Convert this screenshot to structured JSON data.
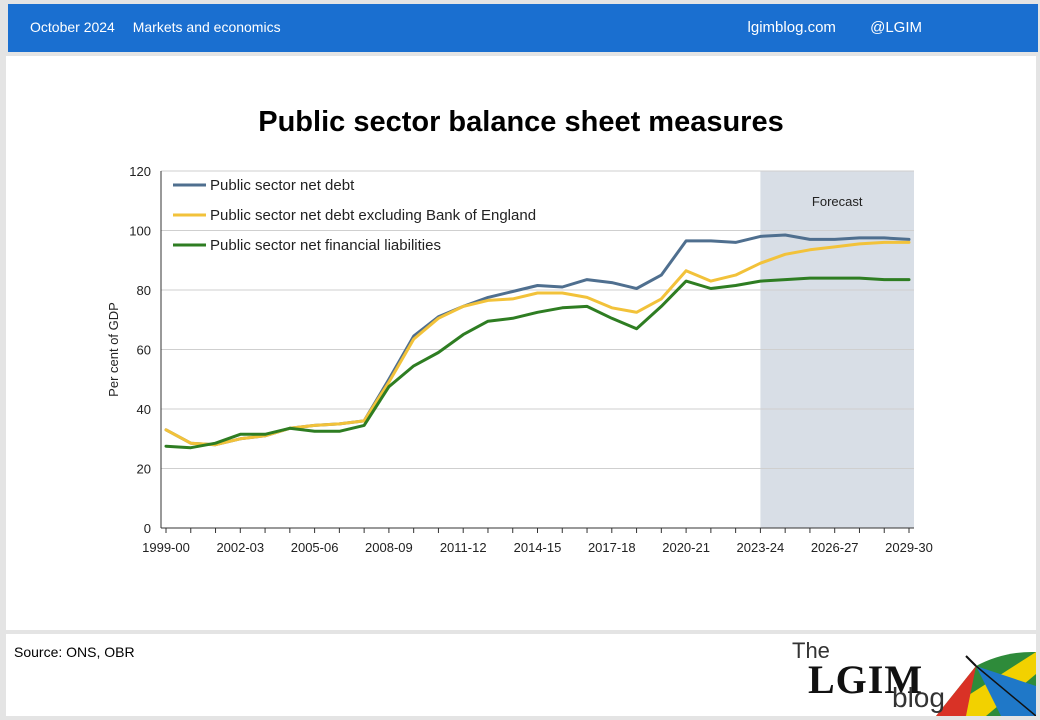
{
  "header": {
    "date": "October 2024",
    "category": "Markets and economics",
    "site": "lgimblog.com",
    "handle": "@LGIM"
  },
  "footer": {
    "source": "Source: ONS, OBR",
    "logo_the": "The",
    "logo_main": "LGIM",
    "logo_blog": "blog"
  },
  "chart_data": {
    "type": "line",
    "title": "Public sector balance sheet measures",
    "ylabel": "Per cent of GDP",
    "xlabel": "",
    "ylim": [
      0,
      120
    ],
    "yticks": [
      0,
      20,
      40,
      60,
      80,
      100,
      120
    ],
    "x": [
      "1999-00",
      "2000-01",
      "2001-02",
      "2002-03",
      "2003-04",
      "2004-05",
      "2005-06",
      "2006-07",
      "2007-08",
      "2008-09",
      "2009-10",
      "2010-11",
      "2011-12",
      "2012-13",
      "2013-14",
      "2014-15",
      "2015-16",
      "2016-17",
      "2017-18",
      "2018-19",
      "2019-20",
      "2020-21",
      "2021-22",
      "2022-23",
      "2023-24",
      "2024-25",
      "2025-26",
      "2026-27",
      "2027-28",
      "2028-29",
      "2029-30"
    ],
    "xtick_labels": [
      "1999-00",
      "2002-03",
      "2005-06",
      "2008-09",
      "2011-12",
      "2014-15",
      "2017-18",
      "2020-21",
      "2023-24",
      "2026-27",
      "2029-30"
    ],
    "forecast": {
      "label": "Forecast",
      "start": "2023-24",
      "end": "2029-30",
      "color": "#d8dee6"
    },
    "legend": "top-left",
    "series": [
      {
        "name": "Public sector net debt",
        "color": "#4f6f8f",
        "values": [
          33,
          28.5,
          28,
          30,
          31,
          33.5,
          34.5,
          35,
          36,
          50,
          64.5,
          71,
          74.5,
          77.5,
          79.5,
          81.5,
          81,
          83.5,
          82.5,
          80.5,
          85,
          96.5,
          96.5,
          96,
          98,
          98.5,
          97,
          97,
          97.5,
          97.5,
          97
        ]
      },
      {
        "name": "Public sector net debt excluding Bank of England",
        "color": "#f2c23a",
        "values": [
          33,
          28.5,
          28,
          30,
          31,
          33.5,
          34.5,
          35,
          36,
          49,
          63.5,
          70.5,
          74.5,
          76.5,
          77,
          79,
          79,
          77.5,
          74,
          72.5,
          77,
          86.5,
          83,
          85,
          89,
          92,
          93.5,
          94.5,
          95.5,
          96,
          96
        ]
      },
      {
        "name": "Public sector net financial liabilities",
        "color": "#2e7d22",
        "values": [
          27.5,
          27,
          28.5,
          31.5,
          31.5,
          33.5,
          32.5,
          32.5,
          34.5,
          47.5,
          54.5,
          59,
          65,
          69.5,
          70.5,
          72.5,
          74,
          74.5,
          70.5,
          67,
          74.5,
          83,
          80.5,
          81.5,
          83,
          83.5,
          84,
          84,
          84,
          83.5,
          83.5
        ]
      }
    ]
  }
}
